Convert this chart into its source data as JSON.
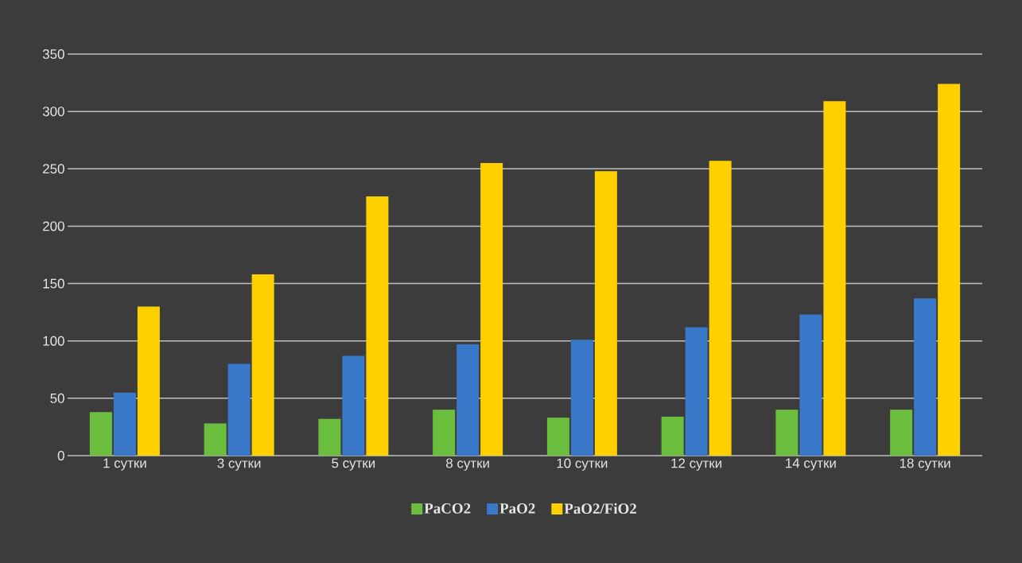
{
  "chart_data": {
    "type": "bar",
    "categories": [
      "1 сутки",
      "3 сутки",
      "5 сутки",
      "8 сутки",
      "10 сутки",
      "12 сутки",
      "14 сутки",
      "18 сутки"
    ],
    "series": [
      {
        "name": "PaCO2",
        "color": "#6cbf3e",
        "values": [
          38,
          28,
          32,
          40,
          33,
          34,
          40,
          40
        ]
      },
      {
        "name": "PaO2",
        "color": "#3a78c9",
        "values": [
          55,
          80,
          87,
          97,
          101,
          112,
          123,
          137
        ]
      },
      {
        "name": "PaO2/FiO2",
        "color": "#ffd000",
        "values": [
          130,
          158,
          226,
          255,
          248,
          257,
          309,
          324
        ]
      }
    ],
    "ylim": [
      0,
      350
    ],
    "yticks": [
      0,
      50,
      100,
      150,
      200,
      250,
      300,
      350
    ],
    "grid": "y",
    "legend": "bottom"
  }
}
